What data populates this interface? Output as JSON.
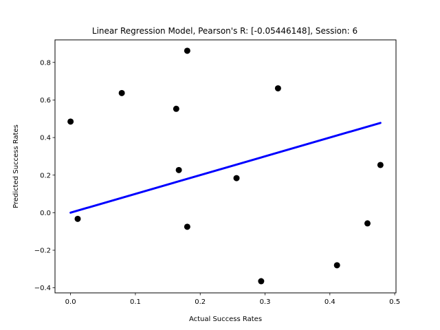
{
  "chart_data": {
    "type": "scatter",
    "title": "Linear Regression Model, Pearson's R: [-0.05446148], Session: 6",
    "xlabel": "Actual Success Rates",
    "ylabel": "Predicted Success Rates",
    "xlim": [
      -0.024,
      0.502
    ],
    "ylim": [
      -0.427,
      0.92
    ],
    "xticks": [
      0.0,
      0.1,
      0.2,
      0.3,
      0.4,
      0.5
    ],
    "xtick_labels": [
      "0.0",
      "0.1",
      "0.2",
      "0.3",
      "0.4",
      "0.5"
    ],
    "yticks": [
      -0.4,
      -0.2,
      0.0,
      0.2,
      0.4,
      0.6,
      0.8
    ],
    "ytick_labels": [
      "−0.4",
      "−0.2",
      "0.0",
      "0.2",
      "0.4",
      "0.6",
      "0.8"
    ],
    "grid": false,
    "series": [
      {
        "kind": "points",
        "color": "#000000",
        "points": [
          {
            "x": 0.0,
            "y": 0.485
          },
          {
            "x": 0.011,
            "y": -0.033
          },
          {
            "x": 0.079,
            "y": 0.637
          },
          {
            "x": 0.163,
            "y": 0.553
          },
          {
            "x": 0.167,
            "y": 0.227
          },
          {
            "x": 0.18,
            "y": 0.862
          },
          {
            "x": 0.18,
            "y": -0.075
          },
          {
            "x": 0.256,
            "y": 0.184
          },
          {
            "x": 0.294,
            "y": -0.365
          },
          {
            "x": 0.32,
            "y": 0.662
          },
          {
            "x": 0.411,
            "y": -0.28
          },
          {
            "x": 0.458,
            "y": -0.057
          },
          {
            "x": 0.478,
            "y": 0.254
          }
        ]
      },
      {
        "kind": "regression-line",
        "color": "#0000ff",
        "points": [
          {
            "x": 0.0,
            "y": 0.0
          },
          {
            "x": 0.478,
            "y": 0.478
          }
        ]
      }
    ]
  }
}
